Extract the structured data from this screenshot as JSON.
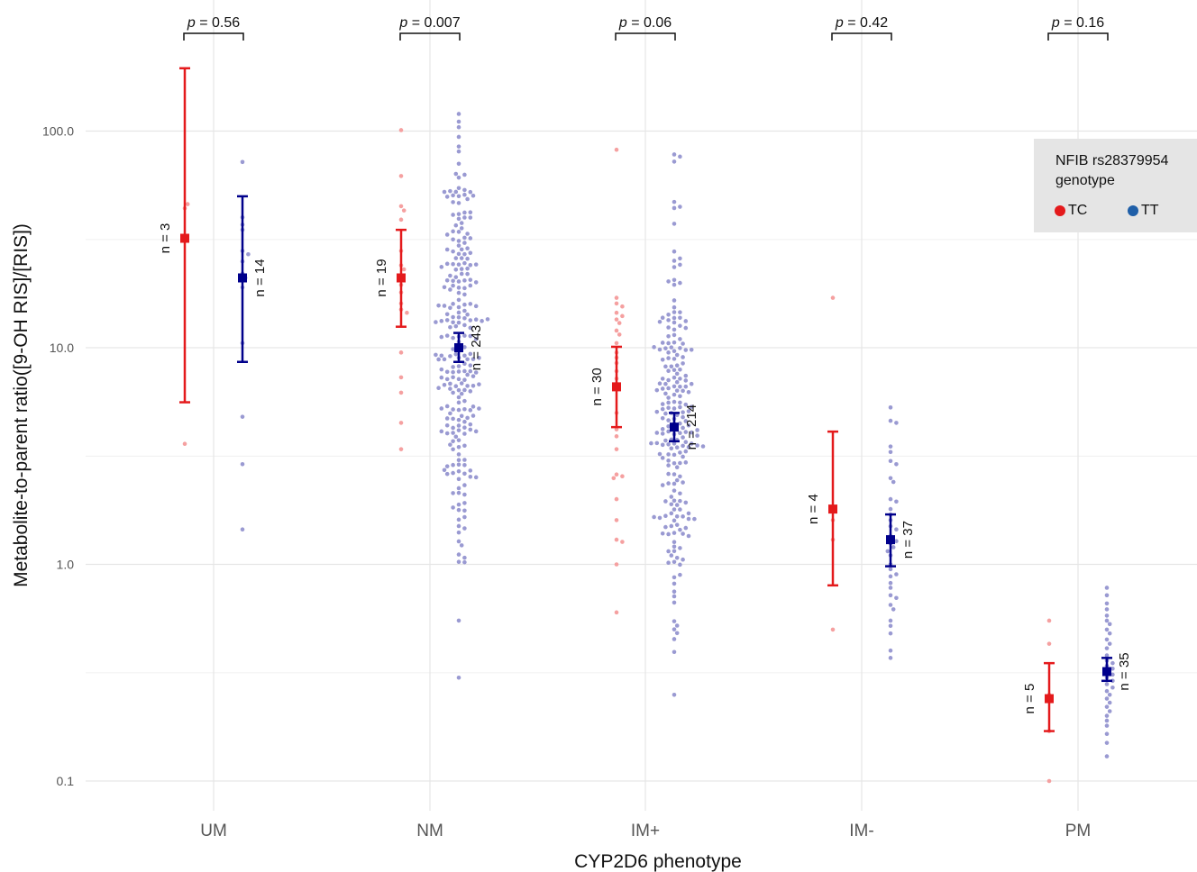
{
  "chart_data": {
    "type": "scatter",
    "xlabel": "CYP2D6 phenotype",
    "ylabel": "Metabolite-to-parent ratio([9-OH RIS]/[RIS])",
    "y_scale": "log10",
    "ylim": [
      0.07,
      250
    ],
    "yticks": [
      0.1,
      1.0,
      10.0,
      100.0
    ],
    "ytick_labels": [
      "0.1",
      "1.0",
      "10.0",
      "100.0"
    ],
    "categories": [
      "UM",
      "NM",
      "IM+",
      "IM-",
      "PM"
    ],
    "grid": true,
    "legend": {
      "title": "NFIB rs28379954 genotype",
      "placement": "right",
      "entries": [
        "TC",
        "TT"
      ]
    },
    "colors": {
      "TC": "#e41a1c",
      "TT": "#00008b",
      "TC_points": "#f5a0a0",
      "TT_points": "#9a9ad2",
      "grid": "#e6e6e6",
      "legend_bg": "#e5e5e5"
    },
    "p_values": [
      "p = 0.56",
      "p = 0.007",
      "p = 0.06",
      "p = 0.42",
      "p = 0.16"
    ],
    "series": [
      {
        "name": "TC",
        "means": [
          32.0,
          21.0,
          6.6,
          1.8,
          0.24
        ],
        "ci_low": [
          5.6,
          12.5,
          4.3,
          0.8,
          0.17
        ],
        "ci_high": [
          195.0,
          35.0,
          10.1,
          4.1,
          0.35
        ],
        "n_labels": [
          "n = 3",
          "n = 19",
          "n = 30",
          "n = 4",
          "n = 5"
        ]
      },
      {
        "name": "TT",
        "means": [
          21.0,
          10.0,
          4.3,
          1.3,
          0.32
        ],
        "ci_low": [
          8.6,
          8.6,
          3.7,
          0.98,
          0.29
        ],
        "ci_high": [
          50.0,
          11.7,
          5.0,
          1.7,
          0.37
        ],
        "n_labels": [
          "n = 14",
          "n = 243",
          "n = 214",
          "n = 37",
          "n = 35"
        ]
      }
    ],
    "points": {
      "UM|TC": [
        3.6,
        44.0,
        46.0
      ],
      "UM|TT": [
        72.0,
        40.0,
        37.0,
        35.0,
        28.0,
        27.0,
        25.0,
        22.0,
        19.0,
        10.5,
        4.8,
        2.9,
        1.45,
        21.0
      ],
      "NM|TC": [
        101.0,
        62.0,
        45.0,
        43.0,
        39.0,
        28.0,
        24.0,
        23.0,
        21.0,
        19.5,
        18.0,
        16.0,
        15.0,
        14.5,
        9.5,
        7.3,
        6.2,
        4.5,
        3.4
      ],
      "IM+|TC": [
        82.0,
        17.0,
        16.0,
        15.5,
        14.5,
        14.0,
        13.5,
        13.0,
        12.0,
        11.5,
        10.5,
        9.5,
        9.0,
        8.5,
        7.8,
        7.2,
        6.8,
        5.0,
        4.2,
        3.9,
        3.4,
        2.6,
        2.55,
        2.5,
        2.0,
        1.6,
        1.3,
        1.27,
        1.0,
        0.6
      ],
      "IM-|TC": [
        17.0,
        1.6,
        1.3,
        0.5
      ],
      "IM-|TT": [
        5.3,
        4.6,
        4.5,
        3.5,
        3.3,
        3.0,
        2.9,
        2.5,
        2.4,
        2.0,
        1.95,
        1.8,
        1.7,
        1.6,
        1.5,
        1.45,
        1.35,
        1.25,
        1.2,
        1.1,
        1.0,
        0.95,
        0.88,
        0.82,
        0.78,
        0.72,
        0.7,
        0.65,
        0.62,
        0.55,
        0.52,
        0.48,
        0.4,
        0.37,
        1.28,
        1.15,
        0.9
      ],
      "PM|TC": [
        0.55,
        0.43,
        0.25,
        0.17,
        0.1
      ],
      "PM|TT": [
        0.78,
        0.72,
        0.66,
        0.62,
        0.58,
        0.55,
        0.53,
        0.5,
        0.48,
        0.45,
        0.43,
        0.41,
        0.38,
        0.36,
        0.35,
        0.34,
        0.33,
        0.32,
        0.31,
        0.3,
        0.29,
        0.28,
        0.27,
        0.26,
        0.25,
        0.24,
        0.23,
        0.22,
        0.21,
        0.2,
        0.19,
        0.18,
        0.165,
        0.15,
        0.13
      ]
    },
    "generated_clouds": {
      "NM|TT": {
        "count": 243,
        "median": 10.0,
        "log_sd": 0.48,
        "min": 0.3,
        "max": 120.0
      },
      "IM+|TT": {
        "count": 214,
        "median": 4.3,
        "log_sd": 0.45,
        "min": 0.25,
        "max": 78.0
      }
    }
  }
}
